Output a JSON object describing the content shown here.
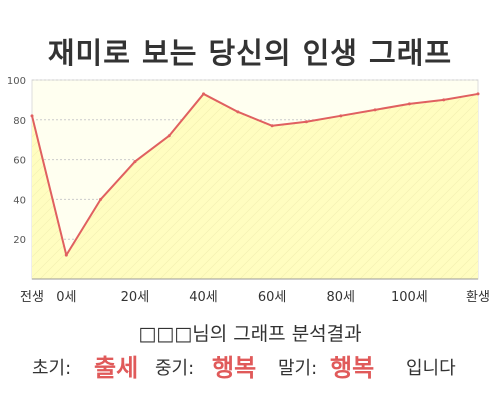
{
  "title": "재미로 보는 당신의 인생 그래프",
  "analysis_heading": "□□□님의 그래프 분석결과",
  "results": {
    "early_label": "초기:",
    "early_value": "출세",
    "mid_label": "중기:",
    "mid_value": "행복",
    "late_label": "말기:",
    "late_value": "행복",
    "ending": "입니다"
  },
  "colors": {
    "value_highlight": "#e05a5a",
    "line": "#e06060",
    "fill": "#fffdc0",
    "plot_bg": "#fffff0",
    "grid": "#cccccc"
  },
  "chart_data": {
    "type": "area",
    "x_labels": [
      "전생",
      "0세",
      "20세",
      "40세",
      "60세",
      "80세",
      "100세",
      "환생"
    ],
    "x": [
      "전생",
      "0세",
      "",
      "20세",
      "",
      "40세",
      "",
      "60세",
      "",
      "80세",
      "",
      "100세",
      "",
      "환생"
    ],
    "values": [
      82,
      12,
      40,
      59,
      72,
      93,
      84,
      77,
      79,
      82,
      85,
      88,
      90,
      93
    ],
    "yticks": [
      20,
      40,
      60,
      80,
      100
    ],
    "ylim": [
      0,
      100
    ],
    "grid": true
  }
}
